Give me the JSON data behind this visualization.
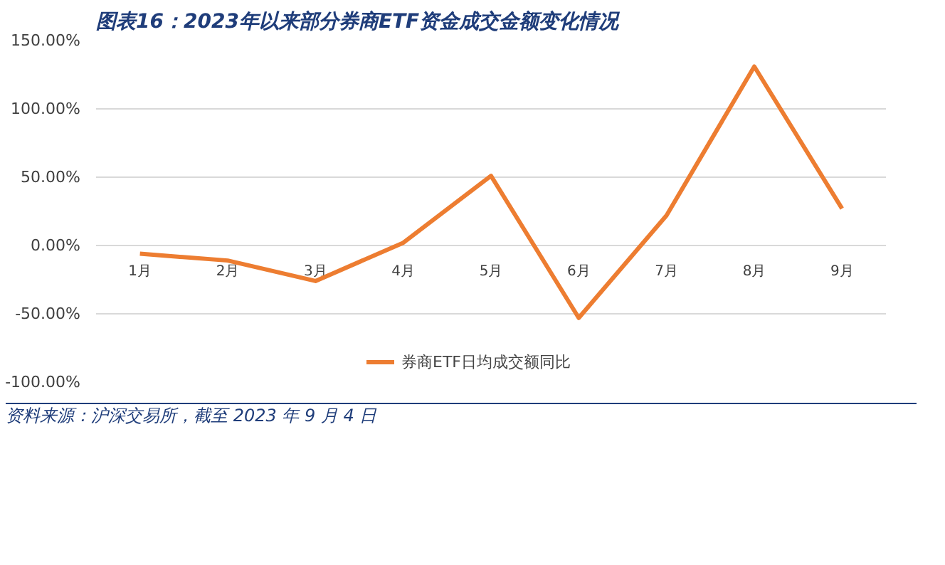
{
  "chart_data": {
    "type": "line",
    "title": "图表16：2023年以来部分券商ETF资金成交金额变化情况",
    "categories": [
      "1月",
      "2月",
      "3月",
      "4月",
      "5月",
      "6月",
      "7月",
      "8月",
      "9月"
    ],
    "series": [
      {
        "name": "券商ETF日均成交额同比",
        "color": "#ed7d31",
        "values": [
          -6,
          -11,
          -26,
          2,
          51,
          -53,
          22,
          131,
          27
        ]
      }
    ],
    "ylim": [
      -100,
      150
    ],
    "yticks": [
      {
        "value": -100,
        "label": "-100.00%"
      },
      {
        "value": -50,
        "label": "-50.00%"
      },
      {
        "value": 0,
        "label": "0.00%"
      },
      {
        "value": 50,
        "label": "50.00%"
      },
      {
        "value": 100,
        "label": "100.00%"
      },
      {
        "value": 150,
        "label": "150.00%"
      }
    ],
    "grid": "y",
    "legend": "bottom",
    "marker": "none",
    "line_style": "solid",
    "annotations": [
      "资料来源：沪深交易所，截至 2023 年 9 月 4 日"
    ]
  }
}
